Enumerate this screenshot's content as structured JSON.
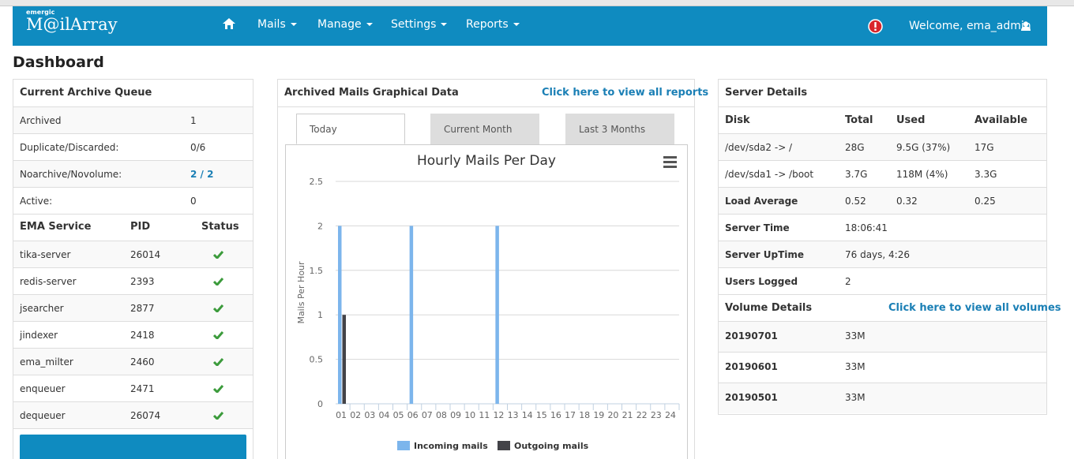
{
  "brand": {
    "small": "emergic",
    "name": "M@ilArray"
  },
  "nav": {
    "items": [
      "Mails",
      "Manage",
      "Settings",
      "Reports"
    ],
    "welcome": "Welcome, ema_admin"
  },
  "page_title": "Dashboard",
  "archive_queue": {
    "title": "Current Archive Queue",
    "rows": [
      [
        "Archived",
        "1"
      ],
      [
        "Duplicate/Discarded:",
        "0/6"
      ],
      [
        "Noarchive/Novolume:",
        "2 / 2"
      ],
      [
        "Active:",
        "0"
      ]
    ]
  },
  "services": {
    "header": [
      "EMA Service",
      "PID",
      "Status"
    ],
    "rows": [
      [
        "tika-server",
        "26014"
      ],
      [
        "redis-server",
        "2393"
      ],
      [
        "jsearcher",
        "2877"
      ],
      [
        "jindexer",
        "2418"
      ],
      [
        "ema_milter",
        "2460"
      ],
      [
        "enqueuer",
        "2471"
      ],
      [
        "dequeuer",
        "26074"
      ]
    ]
  },
  "graph_panel": {
    "title": "Archived Mails Graphical Data",
    "link": "Click here to view all reports",
    "tabs": [
      "Today",
      "Current Month",
      "Last 3 Months"
    ]
  },
  "chart_data": {
    "type": "bar",
    "title": "Hourly Mails Per Day",
    "y_label": "Mails Per Hour",
    "categories": [
      "01",
      "02",
      "03",
      "04",
      "05",
      "06",
      "07",
      "08",
      "09",
      "10",
      "11",
      "12",
      "13",
      "14",
      "15",
      "16",
      "17",
      "18",
      "19",
      "20",
      "21",
      "22",
      "23",
      "24"
    ],
    "series": [
      {
        "name": "Incoming mails",
        "color": "#7cb5ec",
        "values": [
          2,
          0,
          0,
          0,
          0,
          2,
          0,
          0,
          0,
          0,
          0,
          2,
          0,
          0,
          0,
          0,
          0,
          0,
          0,
          0,
          0,
          0,
          0,
          0
        ]
      },
      {
        "name": "Outgoing mails",
        "color": "#434348",
        "values": [
          1,
          0,
          0,
          0,
          0,
          0,
          0,
          0,
          0,
          0,
          0,
          0,
          0,
          0,
          0,
          0,
          0,
          0,
          0,
          0,
          0,
          0,
          0,
          0
        ]
      }
    ],
    "ylim": [
      0,
      2.5
    ],
    "yticks": [
      0,
      0.5,
      1,
      1.5,
      2,
      2.5
    ],
    "grid": true
  },
  "server": {
    "title": "Server Details",
    "header": [
      "Disk",
      "Total",
      "Used",
      "Available"
    ],
    "disks": [
      [
        "/dev/sda2 -> /",
        "28G",
        "9.5G (37%)",
        "17G"
      ],
      [
        "/dev/sda1 -> /boot",
        "3.7G",
        "118M (4%)",
        "3.3G"
      ],
      [
        "Load Average",
        "0.52",
        "0.32",
        "0.25"
      ]
    ],
    "info": [
      [
        "Server Time",
        "18:06:41"
      ],
      [
        "Server UpTime",
        "76 days, 4:26"
      ],
      [
        "Users Logged",
        "2"
      ]
    ],
    "volume_title": "Volume Details",
    "volume_link": "Click here to view all volumes",
    "volumes": [
      [
        "20190701",
        "33M"
      ],
      [
        "20190601",
        "33M"
      ],
      [
        "20190501",
        "33M"
      ]
    ]
  }
}
